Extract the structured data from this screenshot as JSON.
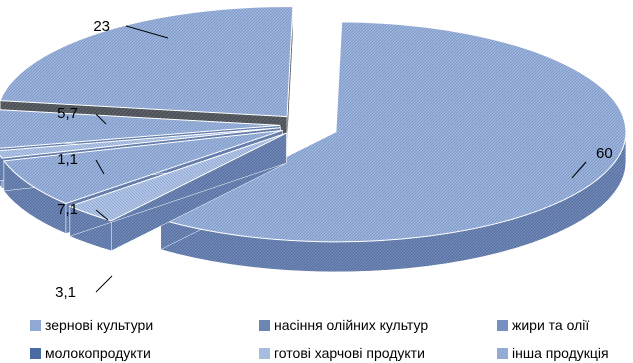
{
  "chart_data": {
    "type": "pie",
    "title": "",
    "slices": [
      {
        "label": "зернові культури",
        "value": 60,
        "color": "#8fa9d4"
      },
      {
        "label": "насіння олійних культур",
        "value": 3.1,
        "color": "#6c86b4"
      },
      {
        "label": "жири та олії",
        "value": 7.1,
        "color": "#7690c0"
      },
      {
        "label": "молокопродукти",
        "value": 1.1,
        "color": "#4a6aa4"
      },
      {
        "label": "готові харчові продукти",
        "value": 5.7,
        "color": "#a6bde0"
      },
      {
        "label": "інша продукція",
        "value": 23,
        "color": "#92acd6"
      }
    ],
    "data_labels": [
      "60",
      "3,1",
      "7,1",
      "1,1",
      "5,7",
      "23"
    ],
    "legend_position": "bottom"
  }
}
